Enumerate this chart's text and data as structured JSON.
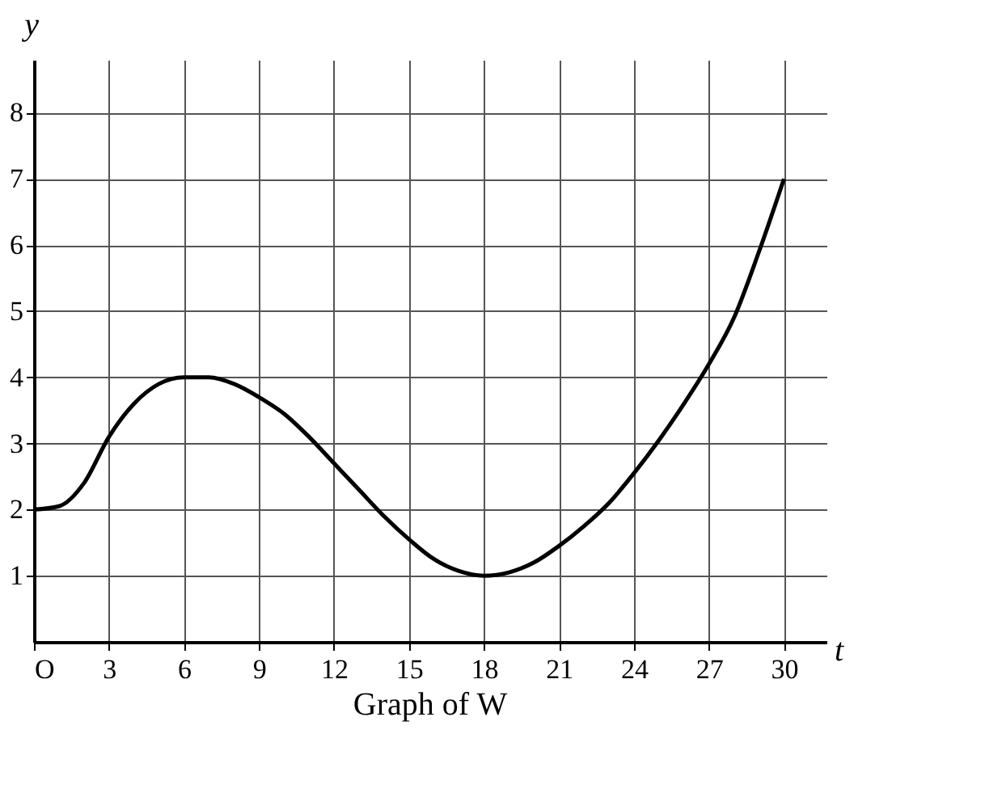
{
  "chart_data": {
    "type": "line",
    "title": "Graph of W",
    "xlabel": "t",
    "ylabel": "y",
    "x": [
      0,
      1,
      2,
      3,
      4,
      5,
      6,
      7,
      8,
      9,
      10,
      11,
      12,
      13,
      14,
      15,
      16,
      17,
      18,
      19,
      20,
      21,
      22,
      23,
      24,
      25,
      26,
      27,
      28,
      29,
      30
    ],
    "series": [
      {
        "color": "#000000",
        "values": [
          2,
          2.05,
          2.4,
          3.1,
          3.6,
          3.9,
          4,
          4,
          3.9,
          3.7,
          3.45,
          3.1,
          2.7,
          2.3,
          1.9,
          1.55,
          1.25,
          1.07,
          1,
          1.05,
          1.2,
          1.45,
          1.75,
          2.1,
          2.55,
          3.05,
          3.6,
          4.2,
          4.9,
          5.9,
          7
        ]
      }
    ],
    "xlim": [
      0,
      31.7
    ],
    "ylim": [
      0,
      8.8
    ],
    "xticks": [
      {
        "value": 0,
        "label": "O"
      },
      3,
      6,
      9,
      12,
      15,
      18,
      21,
      24,
      27,
      30
    ],
    "yticks": [
      1,
      2,
      3,
      4,
      5,
      6,
      7,
      8
    ],
    "grid": true,
    "marker": "none",
    "line_style": "solid"
  }
}
